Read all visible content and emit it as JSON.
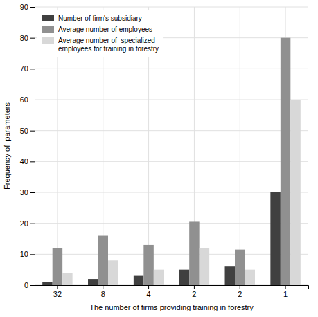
{
  "chart_data": {
    "type": "bar",
    "categories": [
      "32",
      "8",
      "4",
      "2",
      "2",
      "1"
    ],
    "series": [
      {
        "name": "Number of firm's subsidiary",
        "color": "#404040",
        "values": [
          1,
          2,
          3,
          5,
          6,
          30
        ]
      },
      {
        "name": "Average number of employees",
        "color": "#909090",
        "values": [
          12,
          16,
          13,
          20.5,
          11.5,
          80
        ]
      },
      {
        "name": "Average number of  specialized\nemployees for training in forestry",
        "color": "#d8d8d8",
        "values": [
          4,
          8,
          5,
          12,
          5,
          60
        ]
      }
    ],
    "xlabel": "The number of firms providing training in forestry",
    "ylabel": "Frequency of  parameters",
    "ylim": [
      0,
      90
    ],
    "yticks": [
      0,
      10,
      20,
      30,
      40,
      50,
      60,
      70,
      80,
      90
    ],
    "grid": true,
    "legend": "upper left"
  }
}
